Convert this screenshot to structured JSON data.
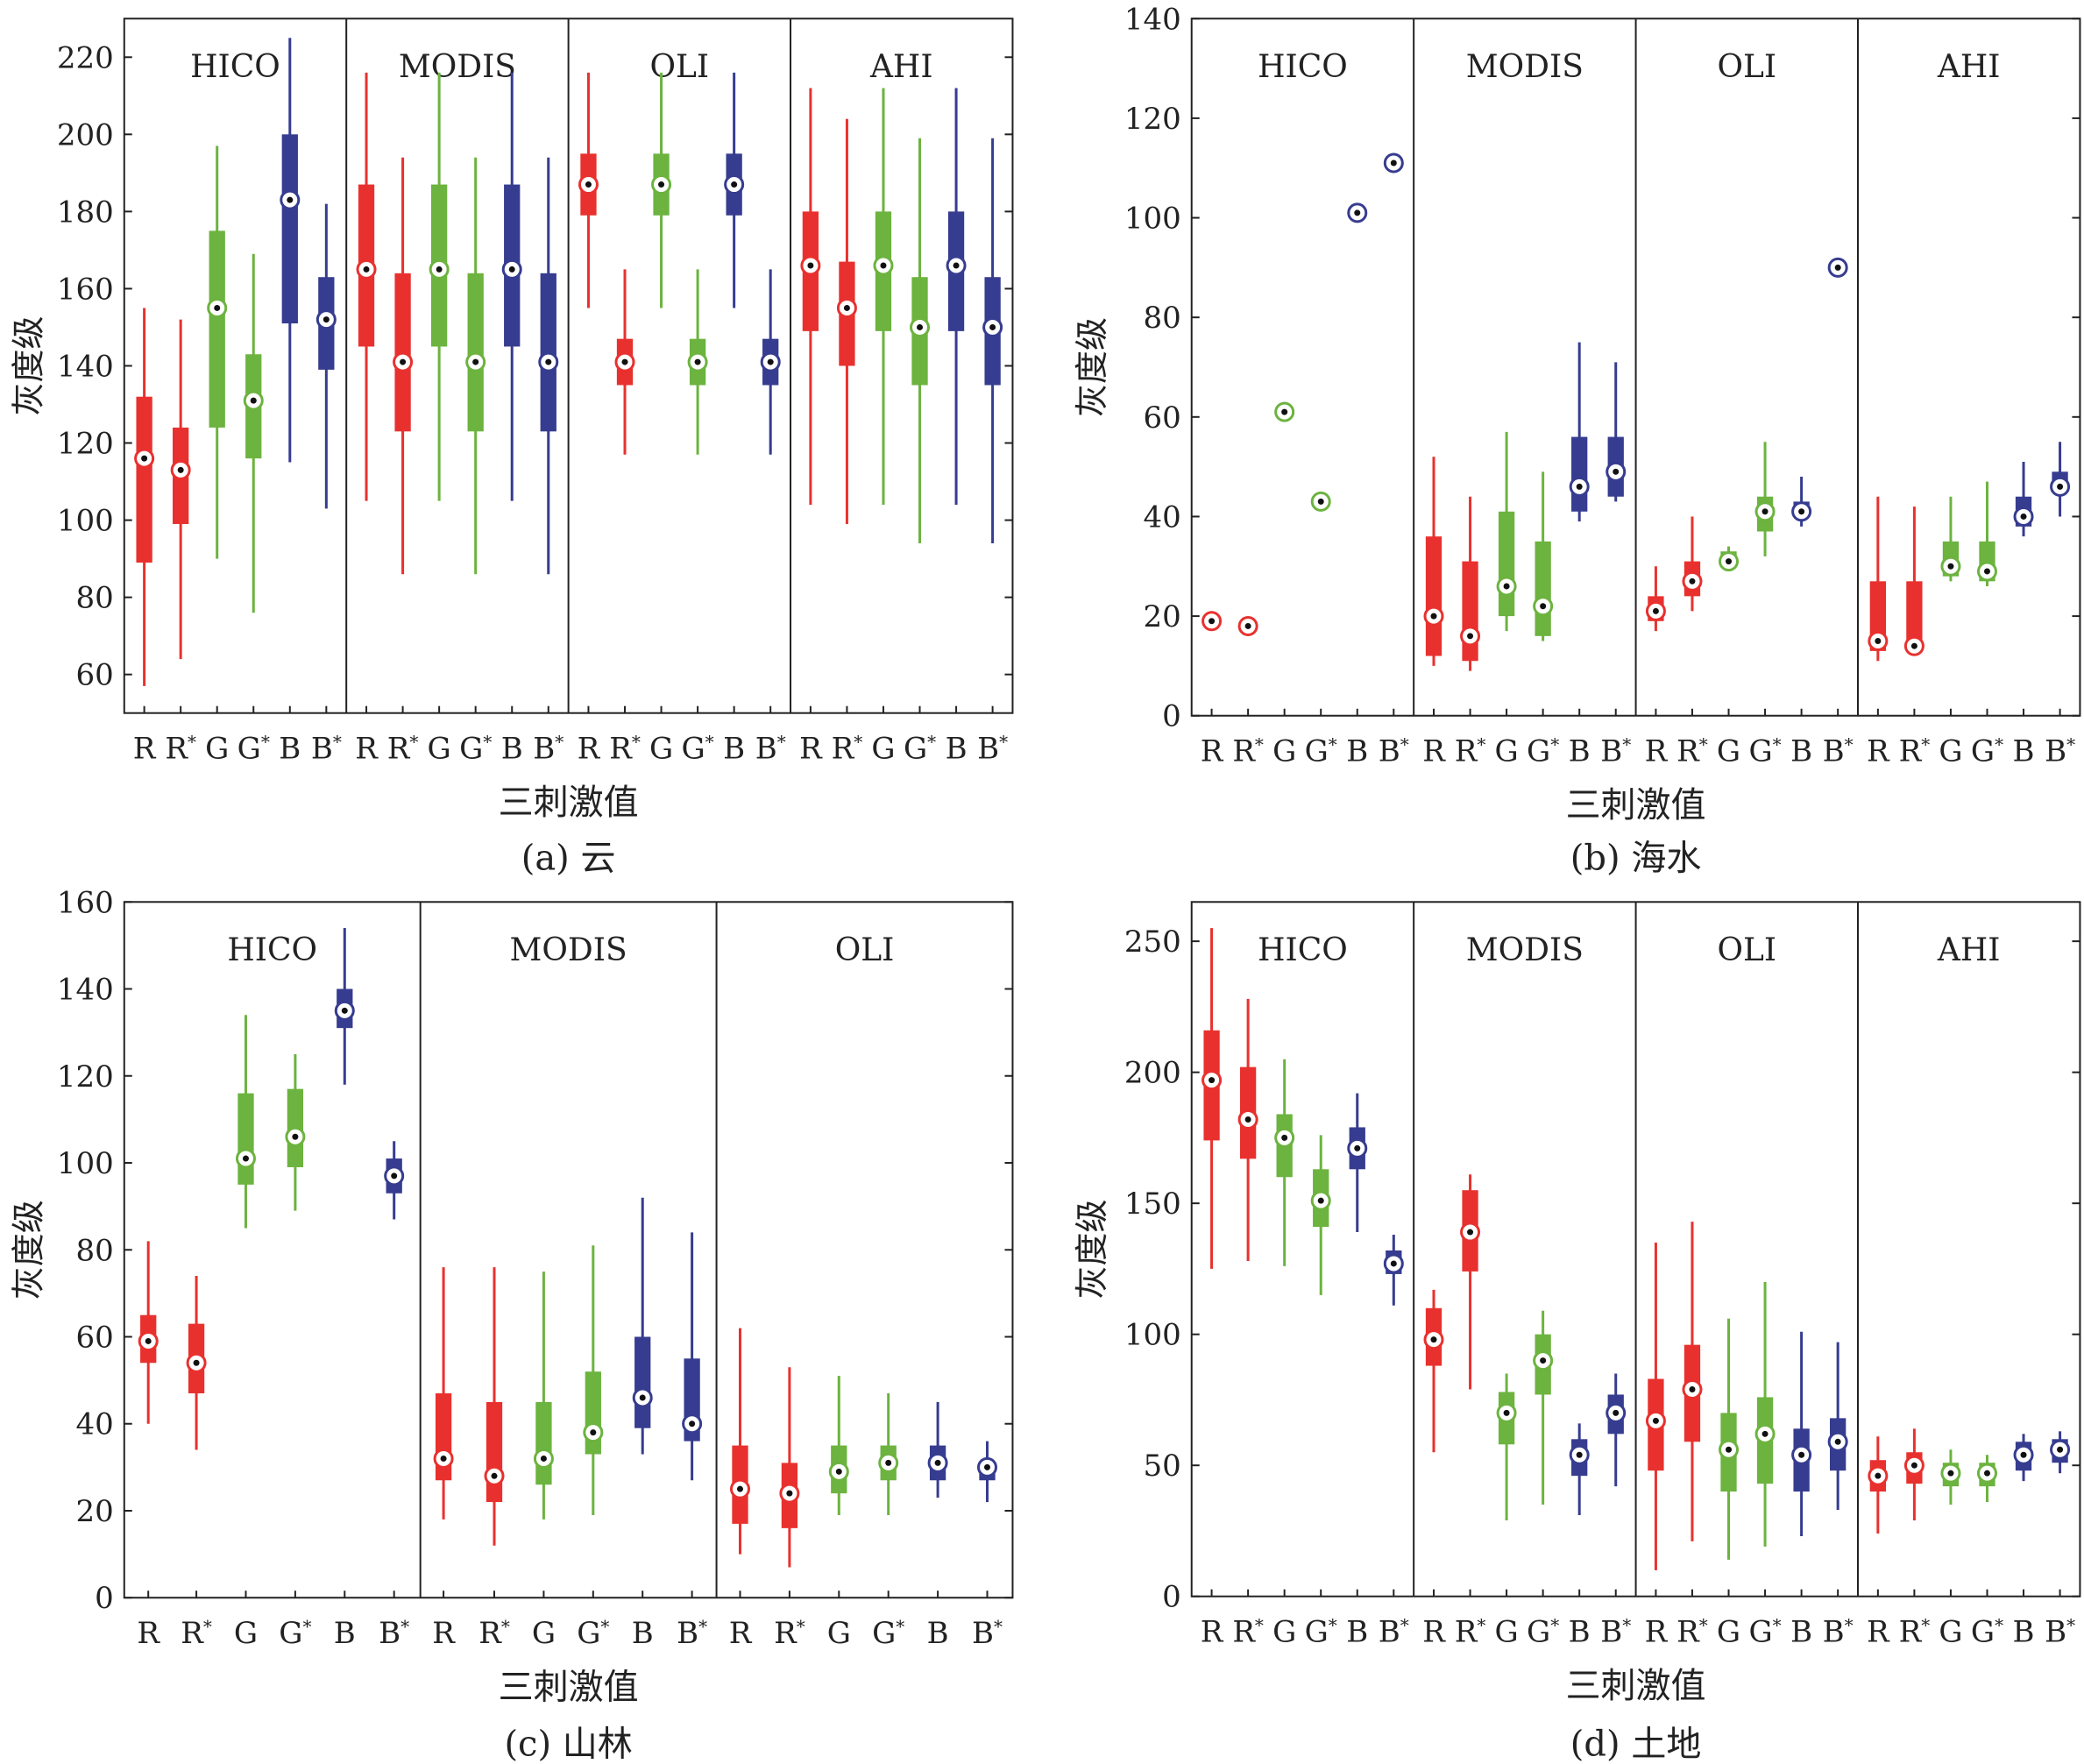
{
  "chart_data": [
    {
      "type": "boxplot",
      "caption": "(a) 云",
      "xlabel": "三刺激值",
      "ylabel": "灰度级",
      "ylim": [
        50,
        230
      ],
      "yticks": [
        60,
        80,
        100,
        120,
        140,
        160,
        180,
        200,
        220
      ],
      "grid": false,
      "categories": [
        "R",
        "R*",
        "G",
        "G*",
        "B",
        "B*"
      ],
      "colors": {
        "R": "#e8312e",
        "G": "#6cb33f",
        "B": "#363c8f"
      },
      "groups": [
        {
          "name": "HICO",
          "boxes": [
            {
              "min": 57,
              "q1": 89,
              "median": 116,
              "q3": 132,
              "max": 155
            },
            {
              "min": 64,
              "q1": 99,
              "median": 113,
              "q3": 124,
              "max": 152
            },
            {
              "min": 90,
              "q1": 124,
              "median": 155,
              "q3": 175,
              "max": 197
            },
            {
              "min": 76,
              "q1": 116,
              "median": 131,
              "q3": 143,
              "max": 169
            },
            {
              "min": 115,
              "q1": 151,
              "median": 183,
              "q3": 200,
              "max": 225
            },
            {
              "min": 103,
              "q1": 139,
              "median": 152,
              "q3": 163,
              "max": 182
            }
          ]
        },
        {
          "name": "MODIS",
          "boxes": [
            {
              "min": 105,
              "q1": 145,
              "median": 165,
              "q3": 187,
              "max": 216
            },
            {
              "min": 86,
              "q1": 123,
              "median": 141,
              "q3": 164,
              "max": 194
            },
            {
              "min": 105,
              "q1": 145,
              "median": 165,
              "q3": 187,
              "max": 216
            },
            {
              "min": 86,
              "q1": 123,
              "median": 141,
              "q3": 164,
              "max": 194
            },
            {
              "min": 105,
              "q1": 145,
              "median": 165,
              "q3": 187,
              "max": 216
            },
            {
              "min": 86,
              "q1": 123,
              "median": 141,
              "q3": 164,
              "max": 194
            }
          ]
        },
        {
          "name": "OLI",
          "boxes": [
            {
              "min": 155,
              "q1": 179,
              "median": 187,
              "q3": 195,
              "max": 216
            },
            {
              "min": 117,
              "q1": 135,
              "median": 141,
              "q3": 147,
              "max": 165
            },
            {
              "min": 155,
              "q1": 179,
              "median": 187,
              "q3": 195,
              "max": 216
            },
            {
              "min": 117,
              "q1": 135,
              "median": 141,
              "q3": 147,
              "max": 165
            },
            {
              "min": 155,
              "q1": 179,
              "median": 187,
              "q3": 195,
              "max": 216
            },
            {
              "min": 117,
              "q1": 135,
              "median": 141,
              "q3": 147,
              "max": 165
            }
          ]
        },
        {
          "name": "AHI",
          "boxes": [
            {
              "min": 104,
              "q1": 149,
              "median": 166,
              "q3": 180,
              "max": 212
            },
            {
              "min": 99,
              "q1": 140,
              "median": 155,
              "q3": 167,
              "max": 204
            },
            {
              "min": 104,
              "q1": 149,
              "median": 166,
              "q3": 180,
              "max": 212
            },
            {
              "min": 94,
              "q1": 135,
              "median": 150,
              "q3": 163,
              "max": 199
            },
            {
              "min": 104,
              "q1": 149,
              "median": 166,
              "q3": 180,
              "max": 212
            },
            {
              "min": 94,
              "q1": 135,
              "median": 150,
              "q3": 163,
              "max": 199
            }
          ]
        }
      ]
    },
    {
      "type": "boxplot",
      "caption": "(b) 海水",
      "xlabel": "三刺激值",
      "ylabel": "灰度级",
      "ylim": [
        0,
        140
      ],
      "yticks": [
        0,
        20,
        40,
        60,
        80,
        100,
        120,
        140
      ],
      "grid": false,
      "categories": [
        "R",
        "R*",
        "G",
        "G*",
        "B",
        "B*"
      ],
      "colors": {
        "R": "#e8312e",
        "G": "#6cb33f",
        "B": "#363c8f"
      },
      "groups": [
        {
          "name": "HICO",
          "boxes": [
            {
              "min": 18,
              "q1": 19,
              "median": 19,
              "q3": 19.5,
              "max": 21
            },
            {
              "min": 17,
              "q1": 18,
              "median": 18,
              "q3": 18.5,
              "max": 19
            },
            {
              "min": 60,
              "q1": 61,
              "median": 61,
              "q3": 62,
              "max": 63
            },
            {
              "min": 42,
              "q1": 43,
              "median": 43,
              "q3": 44,
              "max": 44
            },
            {
              "min": 100,
              "q1": 101,
              "median": 101,
              "q3": 102,
              "max": 102
            },
            {
              "min": 110,
              "q1": 111,
              "median": 111,
              "q3": 112,
              "max": 112
            }
          ]
        },
        {
          "name": "MODIS",
          "boxes": [
            {
              "min": 10,
              "q1": 12,
              "median": 20,
              "q3": 36,
              "max": 52
            },
            {
              "min": 9,
              "q1": 11,
              "median": 16,
              "q3": 31,
              "max": 44
            },
            {
              "min": 17,
              "q1": 20,
              "median": 26,
              "q3": 41,
              "max": 57
            },
            {
              "min": 15,
              "q1": 16,
              "median": 22,
              "q3": 35,
              "max": 49
            },
            {
              "min": 39,
              "q1": 41,
              "median": 46,
              "q3": 56,
              "max": 75
            },
            {
              "min": 43,
              "q1": 44,
              "median": 49,
              "q3": 56,
              "max": 71
            }
          ]
        },
        {
          "name": "OLI",
          "boxes": [
            {
              "min": 17,
              "q1": 19,
              "median": 21,
              "q3": 24,
              "max": 30
            },
            {
              "min": 21,
              "q1": 24,
              "median": 27,
              "q3": 31,
              "max": 40
            },
            {
              "min": 29,
              "q1": 30,
              "median": 31,
              "q3": 33,
              "max": 34
            },
            {
              "min": 32,
              "q1": 37,
              "median": 41,
              "q3": 44,
              "max": 55
            },
            {
              "min": 38,
              "q1": 40,
              "median": 41,
              "q3": 43,
              "max": 48
            },
            {
              "min": 89,
              "q1": 90,
              "median": 90,
              "q3": 91,
              "max": 91
            }
          ]
        },
        {
          "name": "AHI",
          "boxes": [
            {
              "min": 11,
              "q1": 13,
              "median": 15,
              "q3": 27,
              "max": 44
            },
            {
              "min": 12,
              "q1": 13,
              "median": 14,
              "q3": 27,
              "max": 42
            },
            {
              "min": 27,
              "q1": 28,
              "median": 30,
              "q3": 35,
              "max": 44
            },
            {
              "min": 26,
              "q1": 27,
              "median": 29,
              "q3": 35,
              "max": 47
            },
            {
              "min": 36,
              "q1": 38,
              "median": 40,
              "q3": 44,
              "max": 51
            },
            {
              "min": 40,
              "q1": 45,
              "median": 46,
              "q3": 49,
              "max": 55
            }
          ]
        }
      ]
    },
    {
      "type": "boxplot",
      "caption": "(c) 山林",
      "xlabel": "三刺激值",
      "ylabel": "灰度级",
      "ylim": [
        0,
        160
      ],
      "yticks": [
        0,
        20,
        40,
        60,
        80,
        100,
        120,
        140,
        160
      ],
      "grid": false,
      "categories": [
        "R",
        "R*",
        "G",
        "G*",
        "B",
        "B*"
      ],
      "colors": {
        "R": "#e8312e",
        "G": "#6cb33f",
        "B": "#363c8f"
      },
      "groups": [
        {
          "name": "HICO",
          "boxes": [
            {
              "min": 40,
              "q1": 54,
              "median": 59,
              "q3": 65,
              "max": 82
            },
            {
              "min": 34,
              "q1": 47,
              "median": 54,
              "q3": 63,
              "max": 74
            },
            {
              "min": 85,
              "q1": 95,
              "median": 101,
              "q3": 116,
              "max": 134
            },
            {
              "min": 89,
              "q1": 99,
              "median": 106,
              "q3": 117,
              "max": 125
            },
            {
              "min": 118,
              "q1": 131,
              "median": 135,
              "q3": 140,
              "max": 154
            },
            {
              "min": 87,
              "q1": 93,
              "median": 97,
              "q3": 101,
              "max": 105
            }
          ]
        },
        {
          "name": "MODIS",
          "boxes": [
            {
              "min": 18,
              "q1": 27,
              "median": 32,
              "q3": 47,
              "max": 76
            },
            {
              "min": 12,
              "q1": 22,
              "median": 28,
              "q3": 45,
              "max": 76
            },
            {
              "min": 18,
              "q1": 26,
              "median": 32,
              "q3": 45,
              "max": 75
            },
            {
              "min": 19,
              "q1": 33,
              "median": 38,
              "q3": 52,
              "max": 81
            },
            {
              "min": 33,
              "q1": 39,
              "median": 46,
              "q3": 60,
              "max": 92
            },
            {
              "min": 27,
              "q1": 36,
              "median": 40,
              "q3": 55,
              "max": 84
            }
          ]
        },
        {
          "name": "OLI",
          "boxes": [
            {
              "min": 10,
              "q1": 17,
              "median": 25,
              "q3": 35,
              "max": 62
            },
            {
              "min": 7,
              "q1": 16,
              "median": 24,
              "q3": 31,
              "max": 53
            },
            {
              "min": 19,
              "q1": 24,
              "median": 29,
              "q3": 35,
              "max": 51
            },
            {
              "min": 19,
              "q1": 27,
              "median": 31,
              "q3": 35,
              "max": 47
            },
            {
              "min": 23,
              "q1": 27,
              "median": 31,
              "q3": 35,
              "max": 45
            },
            {
              "min": 22,
              "q1": 27,
              "median": 30,
              "q3": 31,
              "max": 36
            }
          ]
        }
      ]
    },
    {
      "type": "boxplot",
      "caption": "(d) 土地",
      "xlabel": "三刺激值",
      "ylabel": "灰度级",
      "ylim": [
        0,
        265
      ],
      "yticks": [
        0,
        50,
        100,
        150,
        200,
        250
      ],
      "grid": false,
      "categories": [
        "R",
        "R*",
        "G",
        "G*",
        "B",
        "B*"
      ],
      "colors": {
        "R": "#e8312e",
        "G": "#6cb33f",
        "B": "#363c8f"
      },
      "groups": [
        {
          "name": "HICO",
          "boxes": [
            {
              "min": 125,
              "q1": 174,
              "median": 197,
              "q3": 216,
              "max": 255
            },
            {
              "min": 128,
              "q1": 167,
              "median": 182,
              "q3": 202,
              "max": 228
            },
            {
              "min": 126,
              "q1": 160,
              "median": 175,
              "q3": 184,
              "max": 205
            },
            {
              "min": 115,
              "q1": 141,
              "median": 151,
              "q3": 163,
              "max": 176
            },
            {
              "min": 139,
              "q1": 163,
              "median": 171,
              "q3": 179,
              "max": 192
            },
            {
              "min": 111,
              "q1": 123,
              "median": 127,
              "q3": 132,
              "max": 138
            }
          ]
        },
        {
          "name": "MODIS",
          "boxes": [
            {
              "min": 55,
              "q1": 88,
              "median": 98,
              "q3": 110,
              "max": 117
            },
            {
              "min": 79,
              "q1": 124,
              "median": 139,
              "q3": 155,
              "max": 161
            },
            {
              "min": 29,
              "q1": 58,
              "median": 70,
              "q3": 78,
              "max": 85
            },
            {
              "min": 35,
              "q1": 77,
              "median": 90,
              "q3": 100,
              "max": 109
            },
            {
              "min": 31,
              "q1": 46,
              "median": 54,
              "q3": 60,
              "max": 66
            },
            {
              "min": 42,
              "q1": 62,
              "median": 70,
              "q3": 77,
              "max": 85
            }
          ]
        },
        {
          "name": "OLI",
          "boxes": [
            {
              "min": 10,
              "q1": 48,
              "median": 67,
              "q3": 83,
              "max": 135
            },
            {
              "min": 21,
              "q1": 59,
              "median": 79,
              "q3": 96,
              "max": 143
            },
            {
              "min": 14,
              "q1": 40,
              "median": 56,
              "q3": 70,
              "max": 106
            },
            {
              "min": 19,
              "q1": 43,
              "median": 62,
              "q3": 76,
              "max": 120
            },
            {
              "min": 23,
              "q1": 40,
              "median": 54,
              "q3": 64,
              "max": 101
            },
            {
              "min": 33,
              "q1": 48,
              "median": 59,
              "q3": 68,
              "max": 97
            }
          ]
        },
        {
          "name": "AHI",
          "boxes": [
            {
              "min": 24,
              "q1": 40,
              "median": 46,
              "q3": 52,
              "max": 61
            },
            {
              "min": 29,
              "q1": 43,
              "median": 50,
              "q3": 55,
              "max": 64
            },
            {
              "min": 35,
              "q1": 42,
              "median": 47,
              "q3": 51,
              "max": 56
            },
            {
              "min": 36,
              "q1": 42,
              "median": 47,
              "q3": 51,
              "max": 54
            },
            {
              "min": 44,
              "q1": 48,
              "median": 54,
              "q3": 59,
              "max": 62
            },
            {
              "min": 47,
              "q1": 51,
              "median": 56,
              "q3": 60,
              "max": 63
            }
          ]
        }
      ]
    }
  ]
}
